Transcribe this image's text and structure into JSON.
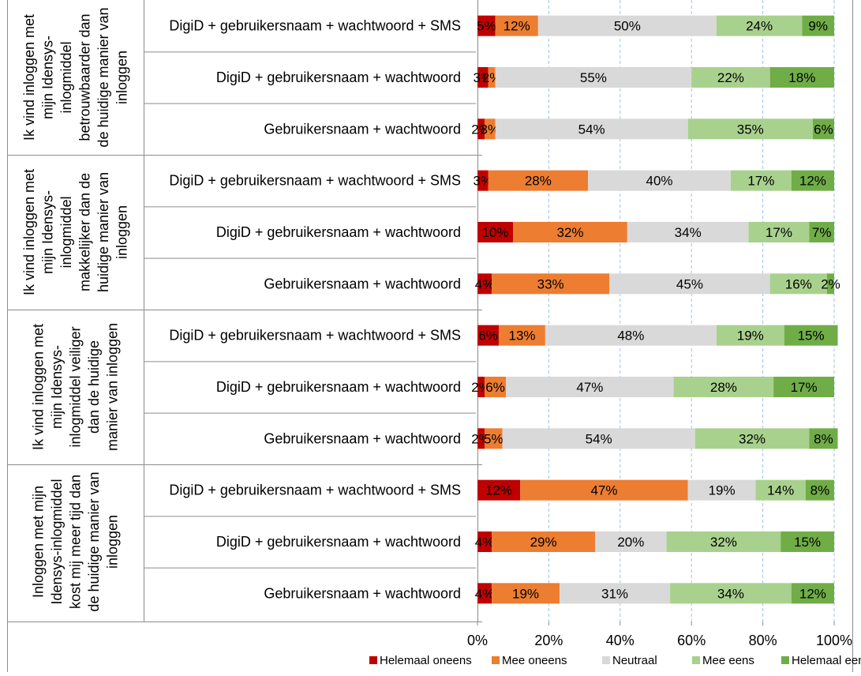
{
  "chart_data": {
    "type": "bar",
    "orientation": "horizontal",
    "stacked": true,
    "percent_stacked": true,
    "title": "",
    "xlabel": "",
    "ylabel": "",
    "xlim": [
      0,
      100
    ],
    "x_ticks": [
      "0%",
      "20%",
      "40%",
      "60%",
      "80%",
      "100%"
    ],
    "grid": "vertical-dashed",
    "legend_position": "bottom",
    "series": [
      {
        "name": "Helemaal oneens",
        "color": "#c00000"
      },
      {
        "name": "Mee oneens",
        "color": "#ed7d31"
      },
      {
        "name": "Neutraal",
        "color": "#d9d9d9"
      },
      {
        "name": "Mee eens",
        "color": "#a9d18e"
      },
      {
        "name": "Helemaal eens",
        "color": "#70ad47"
      }
    ],
    "groups": [
      {
        "label": "Ik vind inloggen met mijn Idensys-inlogmiddel betrouwbaarder dan de huidige manier van inloggen",
        "label_lines": [
          "Ik vind inloggen met",
          "mijn Idensys-",
          "inlogmiddel",
          "betrouwbaarder dan",
          "de huidige manier van",
          "inloggen"
        ],
        "rows": [
          {
            "category": "DigiD + gebruikersnaam + wachtwoord + SMS",
            "values": [
              5,
              12,
              50,
              24,
              9
            ],
            "labels": [
              "5%",
              "12%",
              "50%",
              "24%",
              "9%"
            ]
          },
          {
            "category": "DigiD + gebruikersnaam + wachtwoord",
            "values": [
              3,
              2,
              55,
              22,
              18
            ],
            "labels": [
              "3%",
              "2%",
              "55%",
              "22%",
              "18%"
            ]
          },
          {
            "category": "Gebruikersnaam + wachtwoord",
            "values": [
              2,
              3,
              54,
              35,
              6
            ],
            "labels": [
              "2%",
              "3%",
              "54%",
              "35%",
              "6%"
            ]
          }
        ]
      },
      {
        "label": "Ik vind inloggen met mijn Idensys-inlogmiddel makkelijker dan de huidige manier van inloggen",
        "label_lines": [
          "Ik vind inloggen met",
          "mijn Idensys-",
          "inlogmiddel",
          "makkelijker dan de",
          "huidige manier van",
          "inloggen"
        ],
        "rows": [
          {
            "category": "DigiD + gebruikersnaam + wachtwoord + SMS",
            "values": [
              3,
              28,
              40,
              17,
              12
            ],
            "labels": [
              "3%",
              "28%",
              "40%",
              "17%",
              "12%"
            ]
          },
          {
            "category": "DigiD + gebruikersnaam + wachtwoord",
            "values": [
              10,
              32,
              34,
              17,
              7
            ],
            "labels": [
              "10%",
              "32%",
              "34%",
              "17%",
              "7%"
            ]
          },
          {
            "category": "Gebruikersnaam + wachtwoord",
            "values": [
              4,
              33,
              45,
              16,
              2
            ],
            "labels": [
              "4%",
              "33%",
              "45%",
              "16%",
              "2%"
            ]
          }
        ]
      },
      {
        "label": "Ik vind inloggen met mijn Idensys-inlogmiddel veiliger dan de huidige manier van inloggen",
        "label_lines": [
          "Ik vind inloggen met",
          "mijn Idensys-",
          "inlogmiddel veiliger",
          "dan de huidige",
          "manier van inloggen"
        ],
        "rows": [
          {
            "category": "DigiD + gebruikersnaam + wachtwoord + SMS",
            "values": [
              6,
              13,
              48,
              19,
              15
            ],
            "labels": [
              "6%",
              "13%",
              "48%",
              "19%",
              "15%"
            ]
          },
          {
            "category": "DigiD + gebruikersnaam + wachtwoord",
            "values": [
              2,
              6,
              47,
              28,
              17
            ],
            "labels": [
              "2%",
              "6%",
              "47%",
              "28%",
              "17%"
            ]
          },
          {
            "category": "Gebruikersnaam + wachtwoord",
            "values": [
              2,
              5,
              54,
              32,
              8
            ],
            "labels": [
              "2%",
              "5%",
              "54%",
              "32%",
              "8%"
            ]
          }
        ]
      },
      {
        "label": "Inloggen met mijn Idensys-inlogmiddel kost mij meer tijd dan de huidige manier van inloggen",
        "label_lines": [
          "Inloggen met mijn",
          "Idensys-inlogmiddel",
          "kost mij meer tijd dan",
          "de huidige manier van",
          "inloggen"
        ],
        "rows": [
          {
            "category": "DigiD + gebruikersnaam + wachtwoord + SMS",
            "values": [
              12,
              47,
              19,
              14,
              8
            ],
            "labels": [
              "12%",
              "47%",
              "19%",
              "14%",
              "8%"
            ]
          },
          {
            "category": "DigiD + gebruikersnaam + wachtwoord",
            "values": [
              4,
              29,
              20,
              32,
              15
            ],
            "labels": [
              "4%",
              "29%",
              "20%",
              "32%",
              "15%"
            ]
          },
          {
            "category": "Gebruikersnaam + wachtwoord",
            "values": [
              4,
              19,
              31,
              34,
              12
            ],
            "labels": [
              "4%",
              "19%",
              "31%",
              "34%",
              "12%"
            ]
          }
        ]
      }
    ]
  }
}
